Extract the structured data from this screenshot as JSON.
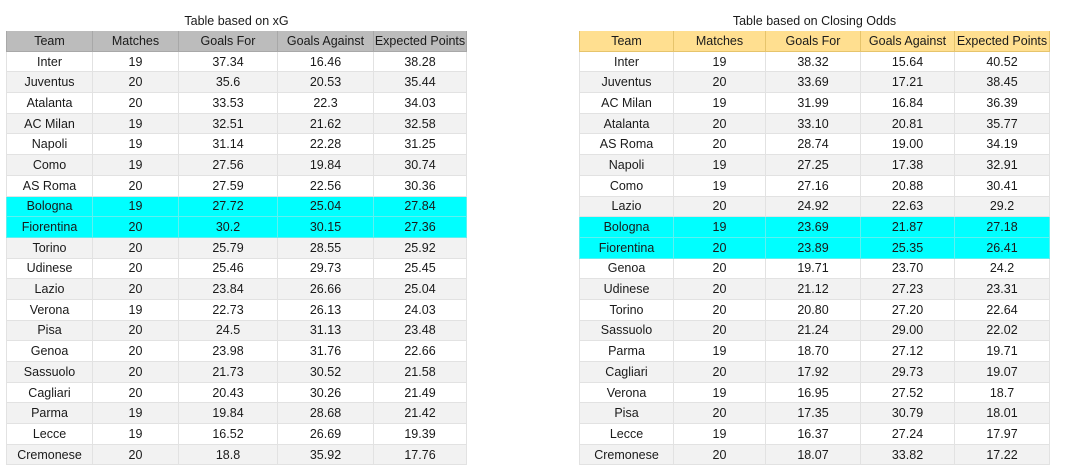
{
  "xg_table": {
    "title": "Table based on xG",
    "headers": [
      "Team",
      "Matches",
      "Goals For",
      "Goals Against",
      "Expected Points"
    ],
    "header_color": "#bcbcbc",
    "highlight_color": "#00ffff",
    "rows": [
      {
        "team": "Inter",
        "matches": "19",
        "gf": "37.34",
        "ga": "16.46",
        "xp": "38.28",
        "highlight": false
      },
      {
        "team": "Juventus",
        "matches": "20",
        "gf": "35.6",
        "ga": "20.53",
        "xp": "35.44",
        "highlight": false
      },
      {
        "team": "Atalanta",
        "matches": "20",
        "gf": "33.53",
        "ga": "22.3",
        "xp": "34.03",
        "highlight": false
      },
      {
        "team": "AC Milan",
        "matches": "19",
        "gf": "32.51",
        "ga": "21.62",
        "xp": "32.58",
        "highlight": false
      },
      {
        "team": "Napoli",
        "matches": "19",
        "gf": "31.14",
        "ga": "22.28",
        "xp": "31.25",
        "highlight": false
      },
      {
        "team": "Como",
        "matches": "19",
        "gf": "27.56",
        "ga": "19.84",
        "xp": "30.74",
        "highlight": false
      },
      {
        "team": "AS Roma",
        "matches": "20",
        "gf": "27.59",
        "ga": "22.56",
        "xp": "30.36",
        "highlight": false
      },
      {
        "team": "Bologna",
        "matches": "19",
        "gf": "27.72",
        "ga": "25.04",
        "xp": "27.84",
        "highlight": true
      },
      {
        "team": "Fiorentina",
        "matches": "20",
        "gf": "30.2",
        "ga": "30.15",
        "xp": "27.36",
        "highlight": true
      },
      {
        "team": "Torino",
        "matches": "20",
        "gf": "25.79",
        "ga": "28.55",
        "xp": "25.92",
        "highlight": false
      },
      {
        "team": "Udinese",
        "matches": "20",
        "gf": "25.46",
        "ga": "29.73",
        "xp": "25.45",
        "highlight": false
      },
      {
        "team": "Lazio",
        "matches": "20",
        "gf": "23.84",
        "ga": "26.66",
        "xp": "25.04",
        "highlight": false
      },
      {
        "team": "Verona",
        "matches": "19",
        "gf": "22.73",
        "ga": "26.13",
        "xp": "24.03",
        "highlight": false
      },
      {
        "team": "Pisa",
        "matches": "20",
        "gf": "24.5",
        "ga": "31.13",
        "xp": "23.48",
        "highlight": false
      },
      {
        "team": "Genoa",
        "matches": "20",
        "gf": "23.98",
        "ga": "31.76",
        "xp": "22.66",
        "highlight": false
      },
      {
        "team": "Sassuolo",
        "matches": "20",
        "gf": "21.73",
        "ga": "30.52",
        "xp": "21.58",
        "highlight": false
      },
      {
        "team": "Cagliari",
        "matches": "20",
        "gf": "20.43",
        "ga": "30.26",
        "xp": "21.49",
        "highlight": false
      },
      {
        "team": "Parma",
        "matches": "19",
        "gf": "19.84",
        "ga": "28.68",
        "xp": "21.42",
        "highlight": false
      },
      {
        "team": "Lecce",
        "matches": "19",
        "gf": "16.52",
        "ga": "26.69",
        "xp": "19.39",
        "highlight": false
      },
      {
        "team": "Cremonese",
        "matches": "20",
        "gf": "18.8",
        "ga": "35.92",
        "xp": "17.76",
        "highlight": false
      }
    ]
  },
  "odds_table": {
    "title": "Table based on Closing Odds",
    "headers": [
      "Team",
      "Matches",
      "Goals For",
      "Goals Against",
      "Expected Points"
    ],
    "header_color": "#ffdf90",
    "highlight_color": "#00ffff",
    "rows": [
      {
        "team": "Inter",
        "matches": "19",
        "gf": "38.32",
        "ga": "15.64",
        "xp": "40.52",
        "highlight": false
      },
      {
        "team": "Juventus",
        "matches": "20",
        "gf": "33.69",
        "ga": "17.21",
        "xp": "38.45",
        "highlight": false
      },
      {
        "team": "AC Milan",
        "matches": "19",
        "gf": "31.99",
        "ga": "16.84",
        "xp": "36.39",
        "highlight": false
      },
      {
        "team": "Atalanta",
        "matches": "20",
        "gf": "33.10",
        "ga": "20.81",
        "xp": "35.77",
        "highlight": false
      },
      {
        "team": "AS Roma",
        "matches": "20",
        "gf": "28.74",
        "ga": "19.00",
        "xp": "34.19",
        "highlight": false
      },
      {
        "team": "Napoli",
        "matches": "19",
        "gf": "27.25",
        "ga": "17.38",
        "xp": "32.91",
        "highlight": false
      },
      {
        "team": "Como",
        "matches": "19",
        "gf": "27.16",
        "ga": "20.88",
        "xp": "30.41",
        "highlight": false
      },
      {
        "team": "Lazio",
        "matches": "20",
        "gf": "24.92",
        "ga": "22.63",
        "xp": "29.2",
        "highlight": false
      },
      {
        "team": "Bologna",
        "matches": "19",
        "gf": "23.69",
        "ga": "21.87",
        "xp": "27.18",
        "highlight": true
      },
      {
        "team": "Fiorentina",
        "matches": "20",
        "gf": "23.89",
        "ga": "25.35",
        "xp": "26.41",
        "highlight": true
      },
      {
        "team": "Genoa",
        "matches": "20",
        "gf": "19.71",
        "ga": "23.70",
        "xp": "24.2",
        "highlight": false
      },
      {
        "team": "Udinese",
        "matches": "20",
        "gf": "21.12",
        "ga": "27.23",
        "xp": "23.31",
        "highlight": false
      },
      {
        "team": "Torino",
        "matches": "20",
        "gf": "20.80",
        "ga": "27.20",
        "xp": "22.64",
        "highlight": false
      },
      {
        "team": "Sassuolo",
        "matches": "20",
        "gf": "21.24",
        "ga": "29.00",
        "xp": "22.02",
        "highlight": false
      },
      {
        "team": "Parma",
        "matches": "19",
        "gf": "18.70",
        "ga": "27.12",
        "xp": "19.71",
        "highlight": false
      },
      {
        "team": "Cagliari",
        "matches": "20",
        "gf": "17.92",
        "ga": "29.73",
        "xp": "19.07",
        "highlight": false
      },
      {
        "team": "Verona",
        "matches": "19",
        "gf": "16.95",
        "ga": "27.52",
        "xp": "18.7",
        "highlight": false
      },
      {
        "team": "Pisa",
        "matches": "20",
        "gf": "17.35",
        "ga": "30.79",
        "xp": "18.01",
        "highlight": false
      },
      {
        "team": "Lecce",
        "matches": "19",
        "gf": "16.37",
        "ga": "27.24",
        "xp": "17.97",
        "highlight": false
      },
      {
        "team": "Cremonese",
        "matches": "20",
        "gf": "18.07",
        "ga": "33.82",
        "xp": "17.22",
        "highlight": false
      }
    ]
  }
}
